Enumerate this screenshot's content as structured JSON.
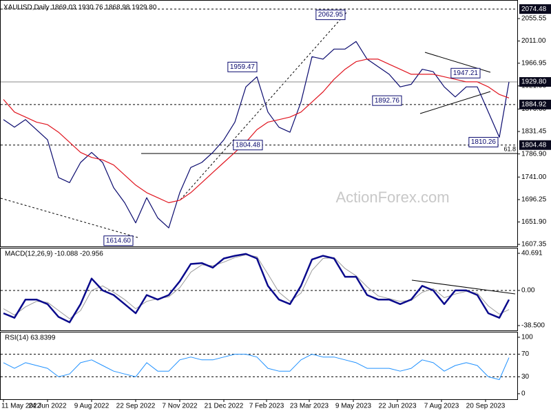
{
  "chart_data": [
    {
      "type": "line",
      "title": "XAUUSD,Daily  1869.03 1930.76 1868.98 1929.80",
      "watermark": "ActionForex.com",
      "x": [
        0,
        8,
        16,
        24,
        32,
        40,
        48,
        56,
        64,
        72,
        80,
        88,
        96,
        104,
        112,
        120,
        128,
        136,
        144,
        152,
        160,
        168,
        176,
        184,
        192,
        200,
        208,
        216,
        224,
        232,
        240,
        248,
        256,
        264,
        272,
        280,
        288,
        296,
        304,
        312,
        320,
        328,
        336,
        344,
        352,
        360,
        367
      ],
      "xlim": [
        -2,
        373
      ],
      "ylim": [
        1603.3,
        2085.6
      ],
      "yticks": [
        2055.55,
        {
          "value": 2011,
          "label": "2011.00"
        },
        1966.95,
        {
          "value": 1921.9,
          "label": "1921.90"
        },
        {
          "value": 1876,
          "label": "1876.00"
        },
        1831.45,
        {
          "value": 1786.9,
          "label": "1786.90"
        },
        {
          "value": 1741,
          "label": "1741.00"
        },
        1696.25,
        {
          "value": 1651.9,
          "label": "1651.90"
        },
        1607.35
      ],
      "series": [
        {
          "color": "#0a0a6e",
          "values": [
            1855,
            1840,
            1855,
            1835,
            1815,
            1740,
            1730,
            1770,
            1790,
            1770,
            1720,
            1690,
            1650,
            1700,
            1660,
            1640,
            1710,
            1760,
            1770,
            1790,
            1815,
            1850,
            1920,
            1940,
            1870,
            1840,
            1830,
            1890,
            1980,
            1975,
            1995,
            1995,
            2010,
            1975,
            1960,
            1945,
            1920,
            1925,
            1955,
            1950,
            1920,
            1900,
            1920,
            1920,
            1870,
            1820,
            1929.8
          ]
        },
        {
          "color": "#e0141e",
          "values": [
            1895,
            1870,
            1860,
            1850,
            1845,
            1830,
            1810,
            1790,
            1780,
            1775,
            1765,
            1745,
            1725,
            1710,
            1700,
            1690,
            1695,
            1710,
            1730,
            1750,
            1770,
            1790,
            1810,
            1835,
            1850,
            1855,
            1860,
            1870,
            1890,
            1910,
            1935,
            1955,
            1970,
            1975,
            1975,
            1965,
            1955,
            1945,
            1945,
            1945,
            1940,
            1935,
            1930,
            1930,
            1920,
            1905,
            1898
          ]
        }
      ],
      "levels": [
        {
          "value": 2074.48,
          "style": "dashed",
          "boxed": true
        },
        {
          "value": 1929.8,
          "label": "1929.80",
          "style": "solid",
          "boxed": true
        },
        {
          "value": 1884.92,
          "style": "dashed",
          "boxed": true
        },
        {
          "value": 1804.48,
          "style": "dashed",
          "boxed": true
        }
      ],
      "annotations": [
        {
          "x": 248,
          "value": 2062.95
        },
        {
          "x": 184,
          "value": 1959.47
        },
        {
          "x": 289,
          "value": 1892.76
        },
        {
          "x": 346,
          "value": 1947.21
        },
        {
          "x": 359,
          "value": 1810.26
        },
        {
          "x": 188,
          "value": 1804.48
        },
        {
          "x": 94,
          "value": 1614.6,
          "label": "1614.60"
        }
      ],
      "fib_line": {
        "value": 1787.7,
        "x": 100
      },
      "fib_ratio": 61.8
    },
    {
      "type": "line",
      "title": "MACD(12,26,9) -10.088 -20.956",
      "x": [
        0,
        8,
        16,
        24,
        32,
        40,
        48,
        56,
        64,
        72,
        80,
        88,
        96,
        104,
        112,
        120,
        128,
        136,
        144,
        152,
        160,
        168,
        176,
        184,
        192,
        200,
        208,
        216,
        224,
        232,
        240,
        248,
        256,
        264,
        272,
        280,
        288,
        296,
        304,
        312,
        320,
        328,
        336,
        344,
        352,
        360,
        367
      ],
      "xlim": [
        -2,
        373
      ],
      "ylim": [
        -43.8,
        45.97
      ],
      "yticks": [
        40.691,
        {
          "value": 0,
          "label": "0.00"
        },
        {
          "value": -38.5,
          "label": "-38.500"
        }
      ],
      "series": [
        {
          "color": "#9a9a9a",
          "width": 1,
          "values": [
            -20,
            -27,
            -18,
            -12,
            -13,
            -22,
            -31,
            -22,
            0,
            5,
            -2,
            -10,
            -20,
            -12,
            -9,
            -7,
            3,
            20,
            28,
            27,
            31,
            36,
            39,
            37,
            18,
            -2,
            -12,
            -3,
            22,
            35,
            36,
            24,
            16,
            4,
            -6,
            -9,
            -12,
            -11,
            -2,
            2,
            -8,
            -4,
            -1,
            -3,
            -17,
            -26,
            -20.956
          ]
        },
        {
          "color": "#0a0a8c",
          "width": 2.5,
          "values": [
            -25,
            -30,
            -10,
            -10,
            -15,
            -29,
            -35,
            -15,
            13,
            0,
            -5,
            -15,
            -25,
            -5,
            -10,
            -5,
            10,
            29,
            30,
            25,
            35,
            38,
            40,
            35,
            5,
            -10,
            -15,
            5,
            34,
            38,
            35,
            15,
            15,
            -5,
            -10,
            -10,
            -15,
            -10,
            5,
            0,
            -15,
            0,
            0,
            -5,
            -25,
            -30,
            -10.088
          ]
        }
      ],
      "levels": [
        {
          "value": 0,
          "style": "dashed"
        }
      ]
    },
    {
      "type": "line",
      "title": "RSI(14) 63.8399",
      "x": [
        0,
        8,
        16,
        24,
        32,
        40,
        48,
        56,
        64,
        72,
        80,
        88,
        96,
        104,
        112,
        120,
        128,
        136,
        144,
        152,
        160,
        168,
        176,
        184,
        192,
        200,
        208,
        216,
        224,
        232,
        240,
        248,
        256,
        264,
        272,
        280,
        288,
        296,
        304,
        312,
        320,
        328,
        336,
        344,
        352,
        360,
        367
      ],
      "xlim": [
        -2,
        373
      ],
      "ylim": [
        -9.8,
        108.5
      ],
      "yticks": [
        100,
        70,
        30,
        0
      ],
      "series": [
        {
          "color": "#1e90ff",
          "width": 1,
          "values": [
            55,
            45,
            55,
            50,
            45,
            30,
            35,
            55,
            60,
            50,
            40,
            35,
            30,
            55,
            40,
            40,
            60,
            65,
            60,
            60,
            65,
            70,
            70,
            65,
            45,
            40,
            40,
            60,
            70,
            65,
            65,
            60,
            55,
            45,
            45,
            45,
            40,
            45,
            60,
            55,
            40,
            50,
            55,
            50,
            30,
            25,
            63.8399
          ]
        }
      ],
      "levels": [
        {
          "value": 70,
          "style": "dashed"
        },
        {
          "value": 30,
          "style": "dashed"
        }
      ],
      "xticks": [
        {
          "value": 0,
          "label": "11 May 2022"
        },
        {
          "value": 32,
          "label": "24 Jun 2022"
        },
        {
          "value": 64,
          "label": "9 Aug 2022"
        },
        {
          "value": 96,
          "label": "22 Sep 2022"
        },
        {
          "value": 128,
          "label": "7 Nov 2022"
        },
        {
          "value": 160,
          "label": "21 Dec 2022"
        },
        {
          "value": 191,
          "label": "7 Feb 2023"
        },
        {
          "value": 222,
          "label": "23 Mar 2023"
        },
        {
          "value": 254,
          "label": "9 May 2023"
        },
        {
          "value": 286,
          "label": "22 Jun 2023"
        },
        {
          "value": 318,
          "label": "7 Aug 2023"
        },
        {
          "value": 350,
          "label": "20 Sep 2023"
        }
      ]
    }
  ]
}
